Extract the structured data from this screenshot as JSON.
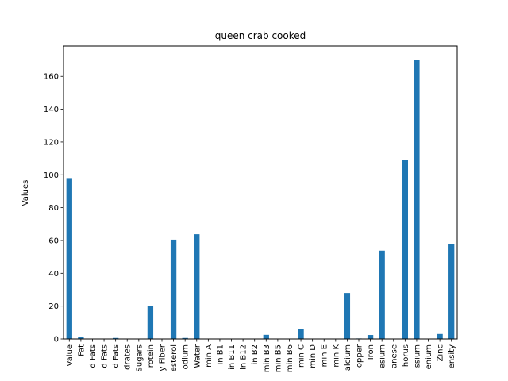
{
  "chart_data": {
    "type": "bar",
    "title": "queen crab cooked",
    "xlabel": "",
    "ylabel": "Values",
    "ylim": [
      0,
      178.5
    ],
    "yticks": [
      0,
      20,
      40,
      60,
      80,
      100,
      120,
      140,
      160
    ],
    "color": "#1f77b4",
    "categories": [
      "Value",
      "Fat",
      "d Fats",
      "d Fats",
      "d Fats",
      "drates",
      "Sugars",
      "rotein",
      "y Fiber",
      "esterol",
      "odium",
      "Water",
      "min A",
      "in B1",
      "in B11",
      "in B12",
      "in B2",
      "min B3",
      "min B5",
      "min B6",
      "min C",
      "min D",
      "min E",
      "min K",
      "alcium",
      "opper",
      "Iron",
      "esium",
      "anese",
      "horus",
      "ssium",
      "enium",
      "Zinc",
      "ensity"
    ],
    "values": [
      98,
      1.1,
      0.1,
      0.2,
      0.6,
      0,
      0,
      20.3,
      0,
      60.5,
      0.6,
      63.8,
      0,
      0,
      0,
      0,
      0,
      2.5,
      0,
      0.1,
      6,
      0,
      0,
      0,
      28,
      0.3,
      2.4,
      53.8,
      0,
      109,
      170,
      0,
      3,
      58
    ]
  }
}
